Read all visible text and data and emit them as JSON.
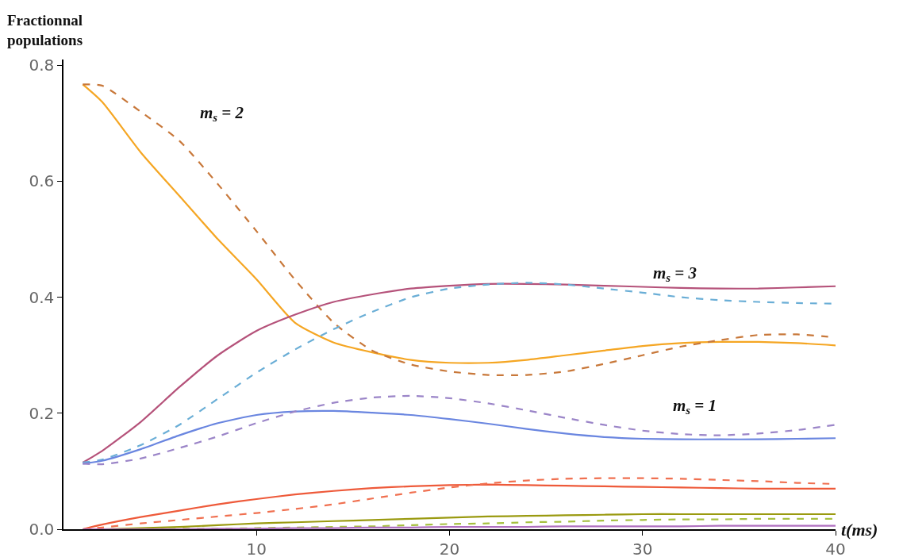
{
  "chart_data": {
    "type": "line",
    "ylabel": "Fractionnal populations",
    "xlabel": "t(ms)",
    "x": [
      1,
      2,
      4,
      6,
      8,
      10,
      12,
      14,
      16,
      18,
      20,
      22,
      24,
      26,
      28,
      30,
      32,
      34,
      36,
      38,
      40
    ],
    "xlim": [
      0,
      40
    ],
    "xticks": [
      10,
      20,
      30,
      40
    ],
    "ylim": [
      0,
      0.81
    ],
    "yticks": [
      {
        "value": 0,
        "label": "0.0"
      },
      {
        "value": 0.2,
        "label": "0.2"
      },
      {
        "value": 0.4,
        "label": "0.4"
      },
      {
        "value": 0.6,
        "label": "0.6"
      },
      {
        "value": 0.8,
        "label": "0.8"
      }
    ],
    "grid": false,
    "marker": "none",
    "annotations": [
      "m$_{s}$ = 2",
      "m$_{s}$ = 3",
      "m$_{s}$ = 1"
    ],
    "series": [
      {
        "color": "#f5a623",
        "line_style": "solid",
        "values": [
          0.767,
          0.737,
          0.65,
          0.575,
          0.5,
          0.431,
          0.356,
          0.322,
          0.305,
          0.292,
          0.287,
          0.287,
          0.292,
          0.3,
          0.308,
          0.316,
          0.321,
          0.323,
          0.323,
          0.321,
          0.317
        ]
      },
      {
        "color": "#c8783a",
        "line_style": "dashed",
        "values": [
          0.767,
          0.765,
          0.72,
          0.67,
          0.595,
          0.514,
          0.43,
          0.356,
          0.308,
          0.284,
          0.272,
          0.266,
          0.266,
          0.272,
          0.285,
          0.3,
          0.315,
          0.326,
          0.335,
          0.336,
          0.331
        ]
      },
      {
        "color": "#b5527a",
        "line_style": "solid",
        "values": [
          0.115,
          0.135,
          0.185,
          0.245,
          0.3,
          0.342,
          0.37,
          0.392,
          0.405,
          0.415,
          0.42,
          0.423,
          0.423,
          0.422,
          0.42,
          0.418,
          0.416,
          0.415,
          0.415,
          0.417,
          0.419
        ]
      },
      {
        "color": "#6aaed6",
        "line_style": "dashed",
        "values": [
          0.115,
          0.12,
          0.145,
          0.18,
          0.225,
          0.27,
          0.31,
          0.345,
          0.375,
          0.4,
          0.415,
          0.422,
          0.425,
          0.422,
          0.415,
          0.408,
          0.4,
          0.395,
          0.392,
          0.39,
          0.389
        ]
      },
      {
        "color": "#6a86e0",
        "line_style": "solid",
        "values": [
          0.113,
          0.118,
          0.138,
          0.162,
          0.183,
          0.197,
          0.203,
          0.204,
          0.201,
          0.197,
          0.19,
          0.182,
          0.173,
          0.165,
          0.159,
          0.156,
          0.155,
          0.155,
          0.155,
          0.156,
          0.157
        ]
      },
      {
        "color": "#9b85c8",
        "line_style": "dashed",
        "values": [
          0.113,
          0.112,
          0.122,
          0.14,
          0.16,
          0.183,
          0.203,
          0.218,
          0.227,
          0.23,
          0.226,
          0.217,
          0.205,
          0.192,
          0.18,
          0.17,
          0.164,
          0.162,
          0.165,
          0.171,
          0.18
        ]
      },
      {
        "color": "#ee5a3a",
        "line_style": "solid",
        "values": [
          0,
          0.008,
          0.021,
          0.032,
          0.043,
          0.052,
          0.06,
          0.066,
          0.071,
          0.074,
          0.076,
          0.077,
          0.076,
          0.075,
          0.074,
          0.073,
          0.072,
          0.071,
          0.07,
          0.07,
          0.07
        ]
      },
      {
        "color": "#f07050",
        "line_style": "dashed",
        "values": [
          0,
          0.003,
          0.01,
          0.016,
          0.022,
          0.028,
          0.035,
          0.043,
          0.053,
          0.063,
          0.072,
          0.079,
          0.084,
          0.087,
          0.088,
          0.088,
          0.087,
          0.085,
          0.083,
          0.08,
          0.078
        ]
      },
      {
        "color": "#9a9a10",
        "line_style": "solid",
        "values": [
          0,
          0,
          0.002,
          0.004,
          0.007,
          0.01,
          0.012,
          0.014,
          0.016,
          0.018,
          0.02,
          0.022,
          0.023,
          0.024,
          0.025,
          0.026,
          0.026,
          0.026,
          0.026,
          0.026,
          0.026
        ]
      },
      {
        "color": "#a6c040",
        "line_style": "dashed",
        "values": [
          0,
          0,
          0,
          0.001,
          0.001,
          0.002,
          0.003,
          0.004,
          0.005,
          0.007,
          0.009,
          0.01,
          0.012,
          0.013,
          0.015,
          0.016,
          0.017,
          0.017,
          0.018,
          0.018,
          0.018
        ]
      },
      {
        "color": "#b070c0",
        "line_style": "solid",
        "values": [
          0,
          0,
          0,
          0,
          0.001,
          0.001,
          0.002,
          0.002,
          0.003,
          0.003,
          0.004,
          0.004,
          0.004,
          0.005,
          0.005,
          0.005,
          0.005,
          0.006,
          0.006,
          0.006,
          0.006
        ]
      }
    ]
  }
}
